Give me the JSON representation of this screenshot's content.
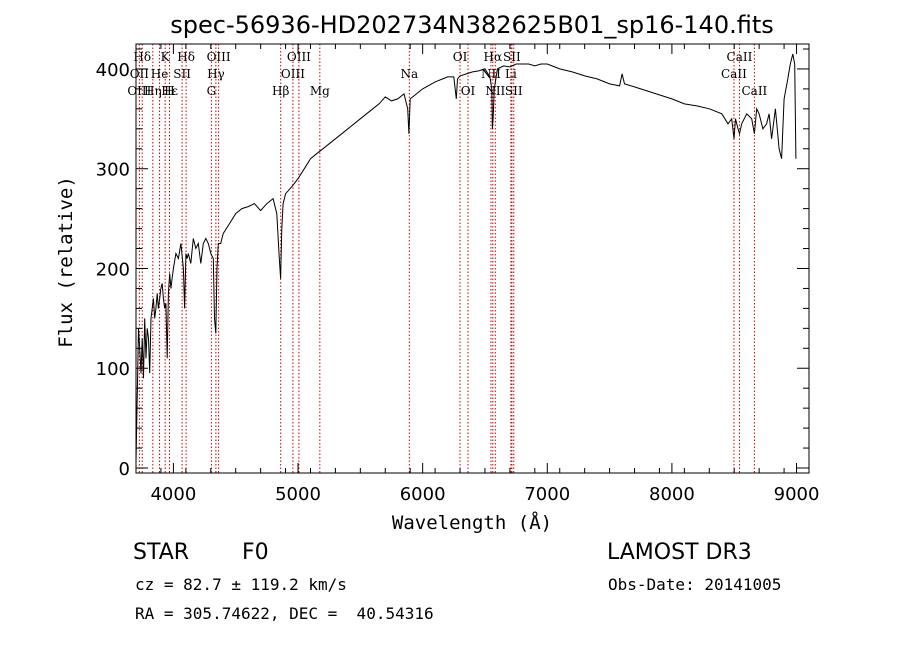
{
  "chart_data": {
    "type": "line",
    "title": "spec-56936-HD202734N382625B01_sp16-140.fits",
    "xlabel": "Wavelength (Å)",
    "ylabel": "Flux (relative)",
    "xlim": [
      3700,
      9100
    ],
    "ylim": [
      -5,
      425
    ],
    "xticks": [
      4000,
      5000,
      6000,
      7000,
      8000,
      9000
    ],
    "yticks": [
      0,
      100,
      200,
      300,
      400
    ],
    "series": [
      {
        "x": [
          3700,
          3710,
          3720,
          3730,
          3740,
          3750,
          3760,
          3770,
          3780,
          3790,
          3800,
          3810,
          3820,
          3830,
          3840,
          3850,
          3860,
          3870,
          3880,
          3890,
          3900,
          3910,
          3920,
          3930,
          3940,
          3950,
          3960,
          3970,
          3980,
          3990,
          4000,
          4020,
          4040,
          4060,
          4080,
          4090,
          4100,
          4110,
          4120,
          4140,
          4160,
          4180,
          4200,
          4220,
          4240,
          4260,
          4280,
          4300,
          4320,
          4330,
          4340,
          4350,
          4360,
          4380,
          4400,
          4450,
          4500,
          4550,
          4600,
          4650,
          4700,
          4750,
          4800,
          4830,
          4850,
          4860,
          4870,
          4880,
          4900,
          4950,
          5000,
          5050,
          5100,
          5150,
          5200,
          5300,
          5400,
          5500,
          5600,
          5650,
          5700,
          5750,
          5800,
          5850,
          5880,
          5890,
          5900,
          5920,
          6000,
          6100,
          6200,
          6250,
          6270,
          6280,
          6300,
          6350,
          6400,
          6450,
          6500,
          6540,
          6555,
          6560,
          6565,
          6575,
          6600,
          6650,
          6700,
          6750,
          6800,
          6850,
          6900,
          6950,
          7000,
          7100,
          7200,
          7300,
          7400,
          7500,
          7580,
          7600,
          7620,
          7700,
          7800,
          7900,
          8000,
          8100,
          8200,
          8300,
          8400,
          8450,
          8480,
          8498,
          8510,
          8530,
          8542,
          8560,
          8600,
          8640,
          8662,
          8680,
          8700,
          8730,
          8760,
          8780,
          8800,
          8830,
          8860,
          8880,
          8900,
          8930,
          8950,
          8970,
          8985,
          8995
        ],
        "values": [
          5,
          70,
          140,
          120,
          95,
          130,
          90,
          150,
          110,
          140,
          130,
          95,
          150,
          160,
          170,
          150,
          160,
          175,
          160,
          170,
          180,
          185,
          170,
          160,
          165,
          110,
          175,
          195,
          180,
          190,
          200,
          215,
          210,
          225,
          200,
          160,
          215,
          210,
          215,
          205,
          230,
          220,
          225,
          205,
          225,
          230,
          225,
          215,
          210,
          150,
          135,
          200,
          225,
          225,
          235,
          245,
          255,
          260,
          262,
          265,
          258,
          265,
          270,
          255,
          210,
          190,
          240,
          265,
          275,
          282,
          290,
          300,
          310,
          315,
          320,
          330,
          340,
          350,
          360,
          365,
          372,
          368,
          370,
          375,
          360,
          335,
          370,
          372,
          380,
          387,
          392,
          392,
          370,
          390,
          393,
          395,
          397,
          398,
          400,
          392,
          380,
          340,
          350,
          380,
          400,
          403,
          402,
          405,
          405,
          405,
          403,
          405,
          405,
          400,
          397,
          393,
          390,
          385,
          383,
          395,
          385,
          382,
          378,
          374,
          370,
          365,
          363,
          360,
          355,
          345,
          350,
          330,
          350,
          340,
          335,
          345,
          355,
          350,
          335,
          360,
          355,
          340,
          345,
          355,
          330,
          360,
          320,
          310,
          370,
          390,
          405,
          415,
          405,
          310
        ]
      }
    ],
    "line_labels": [
      {
        "label": "Hδ",
        "x": 3750,
        "row": 1
      },
      {
        "label": "OII",
        "x": 3727,
        "row": 2
      },
      {
        "label": "OIII",
        "x": 3727,
        "row": 3
      },
      {
        "label": "K",
        "x": 3934,
        "row": 1
      },
      {
        "label": "He",
        "x": 3889,
        "row": 2
      },
      {
        "label": "Hη",
        "x": 3835,
        "row": 3
      },
      {
        "label": "Hε",
        "x": 3970,
        "row": 3
      },
      {
        "label": "Hδ",
        "x": 4102,
        "row": 1
      },
      {
        "label": "SII",
        "x": 4070,
        "row": 2
      },
      {
        "label": "H",
        "x": 3969,
        "row": 3
      },
      {
        "label": "OIII",
        "x": 4363,
        "row": 1
      },
      {
        "label": "Hγ",
        "x": 4341,
        "row": 2
      },
      {
        "label": "G",
        "x": 4305,
        "row": 3
      },
      {
        "label": "Hβ",
        "x": 4861,
        "row": 3
      },
      {
        "label": "OIII",
        "x": 5007,
        "row": 1
      },
      {
        "label": "OIII",
        "x": 4959,
        "row": 2
      },
      {
        "label": "Mg",
        "x": 5175,
        "row": 3
      },
      {
        "label": "Na",
        "x": 5893,
        "row": 2
      },
      {
        "label": "OI",
        "x": 6300,
        "row": 1
      },
      {
        "label": "OI",
        "x": 6364,
        "row": 3
      },
      {
        "label": "Hα",
        "x": 6563,
        "row": 1
      },
      {
        "label": "NII",
        "x": 6548,
        "row": 2
      },
      {
        "label": "NII",
        "x": 6583,
        "row": 3
      },
      {
        "label": "SII",
        "x": 6716,
        "row": 1
      },
      {
        "label": "Li",
        "x": 6708,
        "row": 2
      },
      {
        "label": "SII",
        "x": 6731,
        "row": 3
      },
      {
        "label": "CaII",
        "x": 8542,
        "row": 1
      },
      {
        "label": "CaII",
        "x": 8498,
        "row": 2
      },
      {
        "label": "CaII",
        "x": 8662,
        "row": 3
      }
    ],
    "line_markers": [
      3727,
      3750,
      3835,
      3889,
      3934,
      3969,
      4070,
      4102,
      4305,
      4341,
      4363,
      4861,
      4959,
      5007,
      5175,
      5893,
      6300,
      6364,
      6548,
      6563,
      6583,
      6708,
      6716,
      6731,
      8498,
      8542,
      8662
    ],
    "marker_color": "#cc0000",
    "grid": false
  },
  "info": {
    "class_label": "STAR",
    "subclass": "F0",
    "survey": "LAMOST DR3",
    "redshift": "cz = 82.7 ± 119.2 km/s",
    "obs_date": "Obs-Date: 20141005",
    "coords": "RA = 305.74622, DEC =  40.54316"
  }
}
